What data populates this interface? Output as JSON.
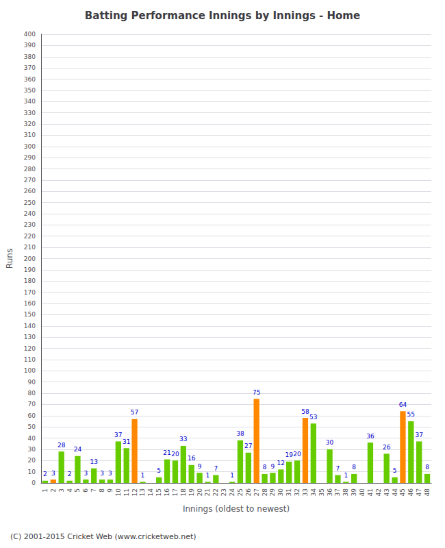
{
  "chart_data": {
    "type": "bar",
    "title": "Batting Performance Innings by Innings - Home",
    "xlabel": "Innings (oldest to newest)",
    "ylabel": "Runs",
    "footer": "(C) 2001-2015 Cricket Web (www.cricketweb.net)",
    "categories": [
      "1",
      "2",
      "3",
      "4",
      "5",
      "6",
      "7",
      "8",
      "9",
      "10",
      "11",
      "12",
      "13",
      "14",
      "15",
      "16",
      "17",
      "18",
      "19",
      "20",
      "21",
      "22",
      "23",
      "24",
      "25",
      "26",
      "27",
      "28",
      "29",
      "30",
      "31",
      "32",
      "33",
      "34",
      "35",
      "36",
      "37",
      "38",
      "39",
      "40",
      "41",
      "42",
      "43",
      "44",
      "45",
      "46",
      "47",
      "48"
    ],
    "values": [
      2,
      3,
      28,
      2,
      24,
      3,
      13,
      3,
      3,
      37,
      31,
      57,
      1,
      0,
      5,
      21,
      20,
      33,
      16,
      9,
      1,
      7,
      0,
      1,
      38,
      27,
      75,
      8,
      9,
      12,
      19,
      20,
      58,
      53,
      0,
      30,
      7,
      1,
      8,
      0,
      36,
      0,
      26,
      5,
      64,
      55,
      37,
      8
    ],
    "value_labels": [
      "2",
      "3",
      "28",
      "2",
      "24",
      "3",
      "13",
      "3",
      "3",
      "37",
      "31",
      "57",
      "1",
      null,
      "5",
      "21",
      "20",
      "33",
      "16",
      "9",
      "1",
      "7",
      null,
      "1",
      "38",
      "27",
      "75",
      "8",
      "9",
      "12",
      "19",
      "20",
      "58",
      "53",
      null,
      "30",
      "7",
      "1",
      "8",
      null,
      "36",
      null,
      "26",
      "5",
      "64",
      "55",
      "37",
      "8"
    ],
    "colors": [
      "#66cc00",
      "#ff8800",
      "#66cc00",
      "#66cc00",
      "#66cc00",
      "#66cc00",
      "#66cc00",
      "#66cc00",
      "#66cc00",
      "#66cc00",
      "#66cc00",
      "#ff8800",
      "#66cc00",
      "#66cc00",
      "#66cc00",
      "#66cc00",
      "#66cc00",
      "#66cc00",
      "#66cc00",
      "#66cc00",
      "#66cc00",
      "#66cc00",
      "#66cc00",
      "#66cc00",
      "#66cc00",
      "#66cc00",
      "#ff8800",
      "#66cc00",
      "#66cc00",
      "#66cc00",
      "#66cc00",
      "#66cc00",
      "#ff8800",
      "#66cc00",
      "#66cc00",
      "#66cc00",
      "#66cc00",
      "#66cc00",
      "#66cc00",
      "#66cc00",
      "#66cc00",
      "#66cc00",
      "#66cc00",
      "#66cc00",
      "#ff8800",
      "#66cc00",
      "#66cc00",
      "#66cc00"
    ],
    "ylim": [
      0,
      400
    ],
    "yticks": [
      0,
      10,
      20,
      30,
      40,
      50,
      60,
      70,
      80,
      90,
      100,
      110,
      120,
      130,
      140,
      150,
      160,
      170,
      180,
      190,
      200,
      210,
      220,
      230,
      240,
      250,
      260,
      270,
      280,
      290,
      300,
      310,
      320,
      330,
      340,
      350,
      360,
      370,
      380,
      390,
      400
    ],
    "grid": true,
    "data_labels": true
  }
}
